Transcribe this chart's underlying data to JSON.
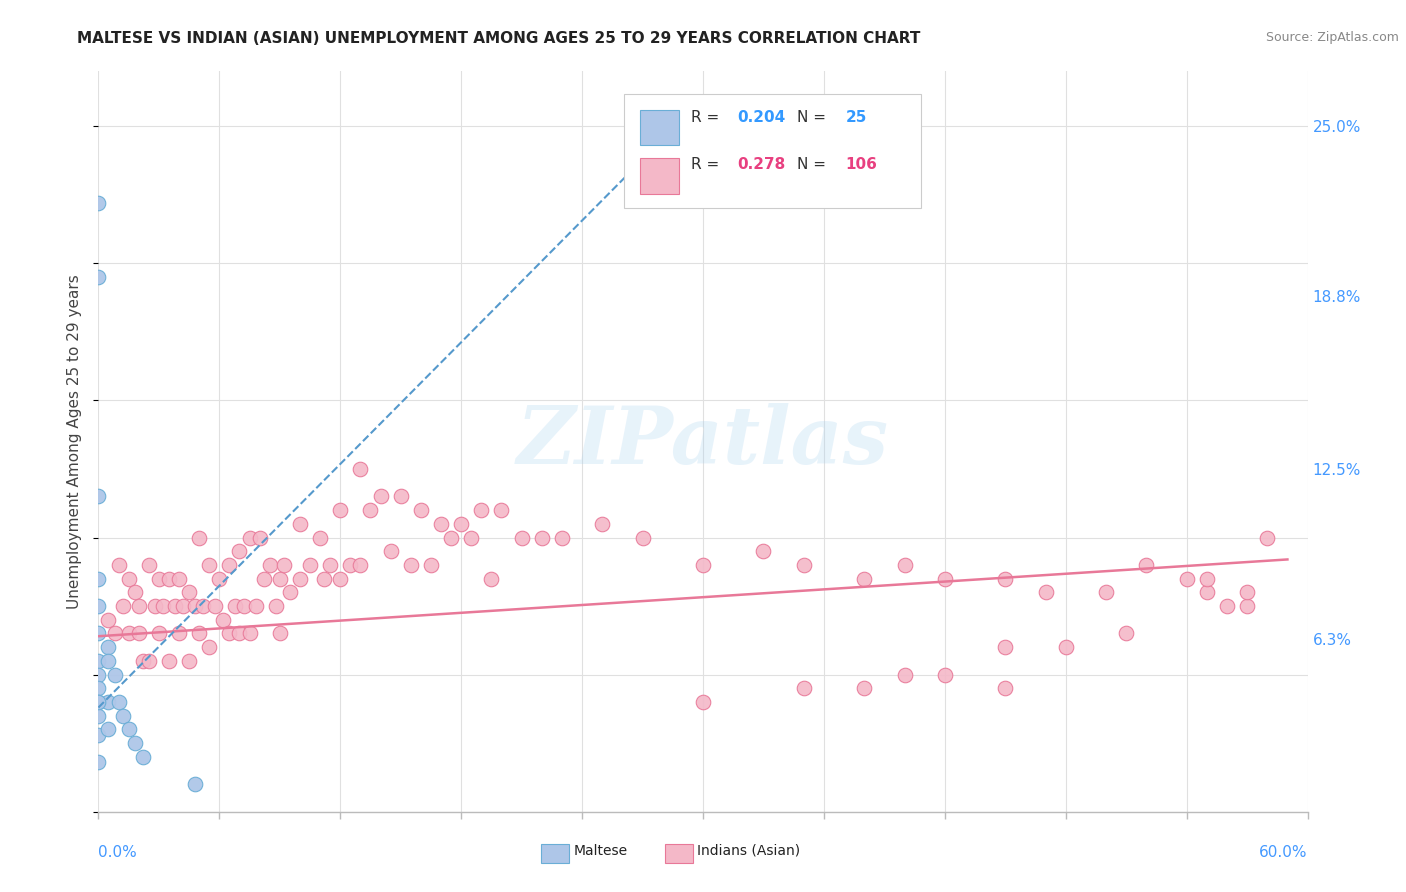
{
  "title": "MALTESE VS INDIAN (ASIAN) UNEMPLOYMENT AMONG AGES 25 TO 29 YEARS CORRELATION CHART",
  "source": "Source: ZipAtlas.com",
  "ylabel": "Unemployment Among Ages 25 to 29 years",
  "xlim": [
    0.0,
    0.6
  ],
  "ylim": [
    0.0,
    0.27
  ],
  "y_ticks": [
    0.063,
    0.125,
    0.188,
    0.25
  ],
  "y_tick_labels": [
    "6.3%",
    "12.5%",
    "18.8%",
    "25.0%"
  ],
  "maltese_R": "0.204",
  "maltese_N": "25",
  "indian_R": "0.278",
  "indian_N": "106",
  "maltese_color": "#aec6e8",
  "maltese_edge_color": "#6aaed6",
  "indian_color": "#f4b8c8",
  "indian_edge_color": "#e87898",
  "maltese_line_color": "#5599cc",
  "indian_line_color": "#e87898",
  "background_color": "#ffffff",
  "grid_color": "#e0e0e0",
  "title_color": "#222222",
  "source_color": "#888888",
  "right_label_color": "#4499ff",
  "maltese_x": [
    0.0,
    0.0,
    0.0,
    0.0,
    0.0,
    0.0,
    0.0,
    0.0,
    0.0,
    0.0,
    0.0,
    0.0,
    0.005,
    0.005,
    0.005,
    0.005,
    0.008,
    0.01,
    0.012,
    0.015,
    0.018,
    0.022,
    0.048,
    0.0,
    0.0
  ],
  "maltese_y": [
    0.222,
    0.195,
    0.115,
    0.085,
    0.075,
    0.065,
    0.055,
    0.05,
    0.045,
    0.04,
    0.035,
    0.028,
    0.06,
    0.055,
    0.04,
    0.03,
    0.05,
    0.04,
    0.035,
    0.03,
    0.025,
    0.02,
    0.01,
    0.04,
    0.018
  ],
  "indian_x": [
    0.005,
    0.008,
    0.01,
    0.012,
    0.015,
    0.015,
    0.018,
    0.02,
    0.02,
    0.022,
    0.025,
    0.025,
    0.028,
    0.03,
    0.03,
    0.032,
    0.035,
    0.035,
    0.038,
    0.04,
    0.04,
    0.042,
    0.045,
    0.045,
    0.048,
    0.05,
    0.05,
    0.052,
    0.055,
    0.055,
    0.058,
    0.06,
    0.062,
    0.065,
    0.065,
    0.068,
    0.07,
    0.07,
    0.072,
    0.075,
    0.075,
    0.078,
    0.08,
    0.082,
    0.085,
    0.088,
    0.09,
    0.09,
    0.092,
    0.095,
    0.1,
    0.1,
    0.105,
    0.11,
    0.112,
    0.115,
    0.12,
    0.12,
    0.125,
    0.13,
    0.13,
    0.135,
    0.14,
    0.145,
    0.15,
    0.155,
    0.16,
    0.165,
    0.17,
    0.175,
    0.18,
    0.185,
    0.19,
    0.195,
    0.2,
    0.21,
    0.22,
    0.23,
    0.25,
    0.27,
    0.3,
    0.33,
    0.35,
    0.38,
    0.4,
    0.42,
    0.45,
    0.47,
    0.5,
    0.52,
    0.54,
    0.55,
    0.56,
    0.57,
    0.38,
    0.42,
    0.45,
    0.48,
    0.51,
    0.55,
    0.57,
    0.58,
    0.3,
    0.35,
    0.4,
    0.45
  ],
  "indian_y": [
    0.07,
    0.065,
    0.09,
    0.075,
    0.085,
    0.065,
    0.08,
    0.075,
    0.065,
    0.055,
    0.09,
    0.055,
    0.075,
    0.085,
    0.065,
    0.075,
    0.085,
    0.055,
    0.075,
    0.085,
    0.065,
    0.075,
    0.08,
    0.055,
    0.075,
    0.1,
    0.065,
    0.075,
    0.09,
    0.06,
    0.075,
    0.085,
    0.07,
    0.09,
    0.065,
    0.075,
    0.095,
    0.065,
    0.075,
    0.1,
    0.065,
    0.075,
    0.1,
    0.085,
    0.09,
    0.075,
    0.085,
    0.065,
    0.09,
    0.08,
    0.105,
    0.085,
    0.09,
    0.1,
    0.085,
    0.09,
    0.11,
    0.085,
    0.09,
    0.125,
    0.09,
    0.11,
    0.115,
    0.095,
    0.115,
    0.09,
    0.11,
    0.09,
    0.105,
    0.1,
    0.105,
    0.1,
    0.11,
    0.085,
    0.11,
    0.1,
    0.1,
    0.1,
    0.105,
    0.1,
    0.09,
    0.095,
    0.09,
    0.085,
    0.09,
    0.085,
    0.085,
    0.08,
    0.08,
    0.09,
    0.085,
    0.08,
    0.075,
    0.075,
    0.045,
    0.05,
    0.045,
    0.06,
    0.065,
    0.085,
    0.08,
    0.1,
    0.04,
    0.045,
    0.05,
    0.06
  ],
  "maltese_trendline_x": [
    0.0,
    0.3
  ],
  "maltese_trendline_y": [
    0.038,
    0.26
  ],
  "indian_trendline_x": [
    0.0,
    0.59
  ],
  "indian_trendline_y": [
    0.064,
    0.092
  ]
}
